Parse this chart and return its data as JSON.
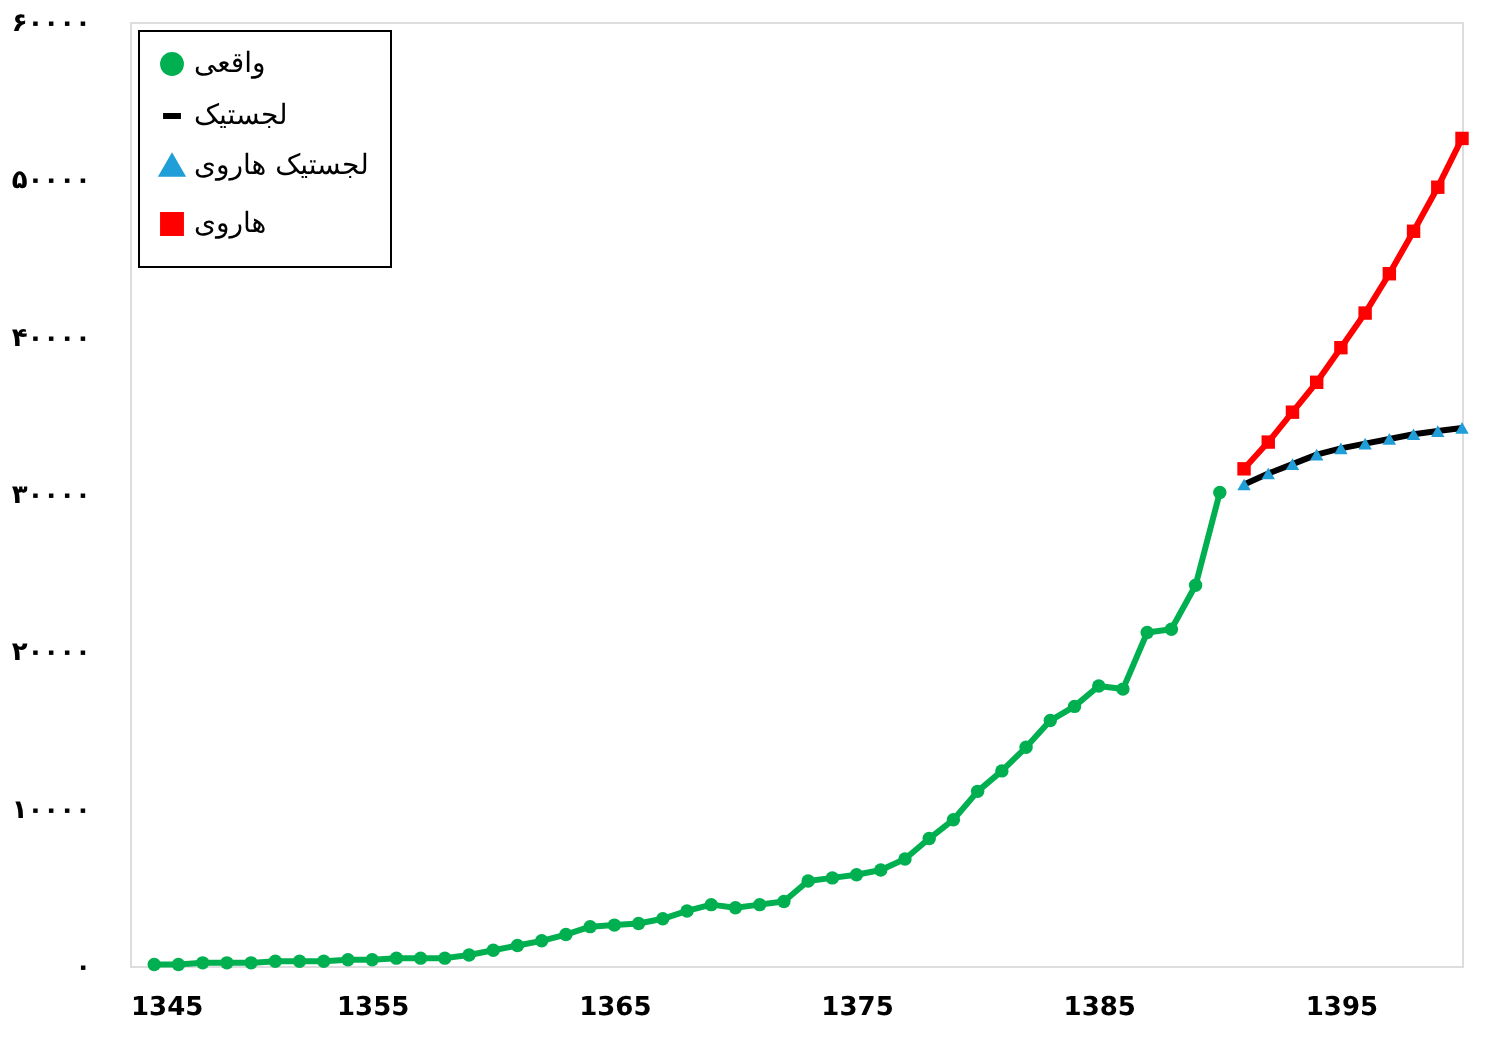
{
  "chart_data": {
    "type": "line",
    "xlim": [
      1345,
      1400
    ],
    "xticks": [
      1345,
      1355,
      1365,
      1375,
      1385,
      1395
    ],
    "ylim": [
      0,
      60000
    ],
    "yticks": [
      {
        "value": 0,
        "label": "۰"
      },
      {
        "value": 10000,
        "label": "۱۰۰۰۰"
      },
      {
        "value": 20000,
        "label": "۲۰۰۰۰"
      },
      {
        "value": 30000,
        "label": "۳۰۰۰۰"
      },
      {
        "value": 40000,
        "label": "۴۰۰۰۰"
      },
      {
        "value": 50000,
        "label": "۵۰۰۰۰"
      },
      {
        "value": 60000,
        "label": "۶۰۰۰۰"
      }
    ],
    "grid": false,
    "legend": "top left",
    "series": [
      {
        "name": "واقعی",
        "type": "line",
        "marker": "circle",
        "color": "#00b050",
        "x": [
          1346,
          1347,
          1348,
          1349,
          1350,
          1351,
          1352,
          1353,
          1354,
          1355,
          1356,
          1357,
          1358,
          1359,
          1360,
          1361,
          1362,
          1363,
          1364,
          1365,
          1366,
          1367,
          1368,
          1369,
          1370,
          1371,
          1372,
          1373,
          1374,
          1375,
          1376,
          1377,
          1378,
          1379,
          1380,
          1381,
          1382,
          1383,
          1384,
          1385,
          1386,
          1387,
          1388,
          1389,
          1390
        ],
        "values": [
          100,
          100,
          200,
          200,
          200,
          300,
          300,
          300,
          400,
          400,
          500,
          500,
          500,
          700,
          1000,
          1300,
          1600,
          2000,
          2500,
          2600,
          2700,
          3000,
          3500,
          3900,
          3700,
          3900,
          4100,
          5400,
          5600,
          5800,
          6100,
          6800,
          8100,
          9300,
          11100,
          12400,
          13900,
          15600,
          16500,
          17800,
          17600,
          21200,
          21400,
          24200,
          30100
        ]
      },
      {
        "name": "لجستیک",
        "type": "line",
        "marker": "none",
        "color": "#000000",
        "x": [
          1391,
          1392,
          1393,
          1394,
          1395,
          1396,
          1397,
          1398,
          1399,
          1400
        ],
        "values": [
          30600,
          31300,
          31900,
          32500,
          32900,
          33200,
          33500,
          33800,
          34000,
          34200
        ]
      },
      {
        "name": "لجستیک هاروی",
        "type": "scatter",
        "marker": "triangle",
        "color": "#1f9ed8",
        "x": [
          1391,
          1392,
          1393,
          1394,
          1395,
          1396,
          1397,
          1398,
          1399,
          1400
        ],
        "values": [
          30600,
          31300,
          31900,
          32500,
          32900,
          33200,
          33500,
          33800,
          34000,
          34200
        ]
      },
      {
        "name": "هاروی",
        "type": "line",
        "marker": "square",
        "color": "#ff0000",
        "x": [
          1391,
          1392,
          1393,
          1394,
          1395,
          1396,
          1397,
          1398,
          1399,
          1400
        ],
        "values": [
          31600,
          33300,
          35200,
          37100,
          39300,
          41500,
          44000,
          46700,
          49500,
          52600
        ]
      }
    ]
  }
}
